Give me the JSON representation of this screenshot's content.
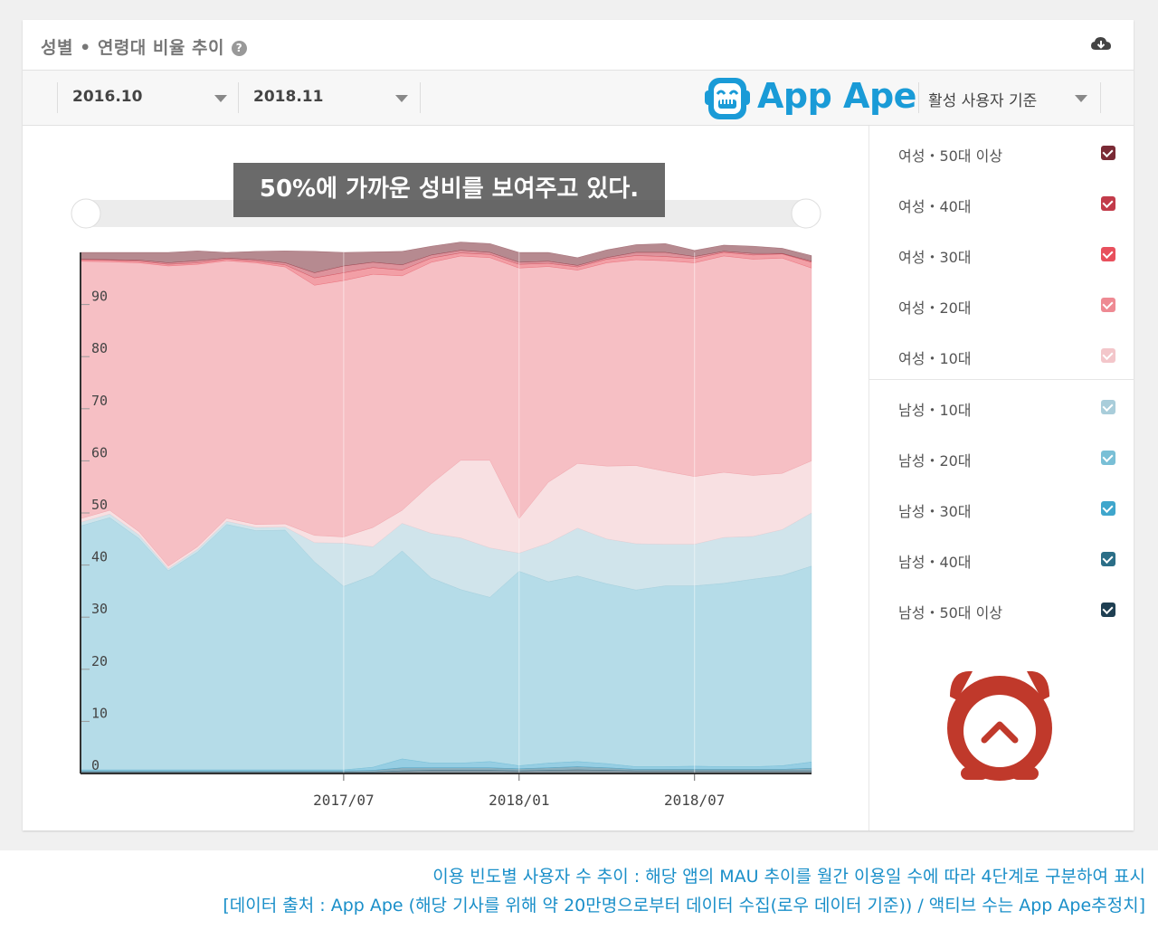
{
  "card": {
    "title": "성별 • 연령대 비율 추이",
    "help_icon": "question-circle-icon",
    "download_icon": "cloud-download-icon"
  },
  "toolbar": {
    "start_period": "2016.10",
    "end_period": "2018.11",
    "basis_select": "활성 사용자 기준",
    "logo_text": "App Ape"
  },
  "overlay": {
    "caption": "50%에 가까운 성비를 보여주고 있다."
  },
  "legend": {
    "items": [
      {
        "label": "여성・50대 이상",
        "color": "#7a2a35"
      },
      {
        "label": "여성・40대",
        "color": "#c23b4a"
      },
      {
        "label": "여성・30대",
        "color": "#e8505d"
      },
      {
        "label": "여성・20대",
        "color": "#ee8a93"
      },
      {
        "label": "여성・10대",
        "color": "#f3c6ca"
      },
      {
        "label": "남성・10대",
        "color": "#a9cdda"
      },
      {
        "label": "남성・20대",
        "color": "#79bfd6"
      },
      {
        "label": "남성・30대",
        "color": "#3fa6cc"
      },
      {
        "label": "남성・40대",
        "color": "#2b6e87"
      },
      {
        "label": "남성・50대 이상",
        "color": "#1f3f52"
      }
    ]
  },
  "footer": {
    "line1": "이용 빈도별 사용자 수 추이 : 해당 앱의 MAU 추이를 월간 이용일 수에 따라 4단계로 구분하여 표시",
    "line2": "[데이터 출처 : App Ape (해당 기사를 위해 약 20만명으로부터 데이터 수집(로우 데이터 기준)) / 액티브 수는 App Ape추정치]"
  },
  "chart_data": {
    "type": "area",
    "stacked": true,
    "x": [
      "2016.10",
      "2016.11",
      "2016.12",
      "2017.01",
      "2017.02",
      "2017.03",
      "2017.04",
      "2017.05",
      "2017.06",
      "2017.07",
      "2017.08",
      "2017.09",
      "2017.10",
      "2017.11",
      "2017.12",
      "2018.01",
      "2018.02",
      "2018.03",
      "2018.04",
      "2018.05",
      "2018.06",
      "2018.07",
      "2018.08",
      "2018.09",
      "2018.10",
      "2018.11"
    ],
    "x_tick_labels": [
      "2017/07",
      "2018/01",
      "2018/07"
    ],
    "x_tick_positions": [
      "2017.07",
      "2018.01",
      "2018.07"
    ],
    "ylim": [
      0,
      100
    ],
    "y_ticks": [
      0,
      10,
      20,
      30,
      40,
      50,
      60,
      70,
      80,
      90
    ],
    "grid": true,
    "series": [
      {
        "name": "남성・50대 이상",
        "color": "#1f3f52",
        "values": [
          0.3,
          0.3,
          0.3,
          0.3,
          0.3,
          0.3,
          0.3,
          0.3,
          0.3,
          0.3,
          0.3,
          0.5,
          0.6,
          0.6,
          0.6,
          0.5,
          0.6,
          0.7,
          0.6,
          0.5,
          0.5,
          0.5,
          0.5,
          0.5,
          0.5,
          0.5
        ]
      },
      {
        "name": "남성・40대",
        "color": "#2b6e87",
        "values": [
          0.2,
          0.2,
          0.2,
          0.2,
          0.2,
          0.2,
          0.2,
          0.2,
          0.2,
          0.2,
          0.3,
          0.6,
          0.5,
          0.5,
          0.5,
          0.4,
          0.5,
          0.6,
          0.5,
          0.3,
          0.3,
          0.3,
          0.3,
          0.3,
          0.3,
          0.5
        ]
      },
      {
        "name": "남성・30대",
        "color": "#3fa6cc",
        "values": [
          0.2,
          0.2,
          0.2,
          0.2,
          0.2,
          0.2,
          0.2,
          0.2,
          0.2,
          0.2,
          0.6,
          1.7,
          0.9,
          0.9,
          1.2,
          0.6,
          0.9,
          1.0,
          0.8,
          0.5,
          0.5,
          0.6,
          0.5,
          0.5,
          0.7,
          1.2
        ]
      },
      {
        "name": "남성・20대",
        "color": "#79bfd6",
        "values": [
          46.8,
          48.4,
          44.4,
          38.2,
          41.8,
          47.1,
          45.9,
          46.0,
          39.9,
          35.2,
          36.8,
          39.9,
          35.5,
          33.3,
          31.5,
          37.3,
          34.8,
          35.6,
          34.5,
          33.9,
          34.7,
          34.6,
          35.2,
          36.0,
          36.5,
          37.6
        ]
      },
      {
        "name": "남성・10대",
        "color": "#a9cdda",
        "values": [
          0.7,
          0.7,
          0.7,
          0.4,
          0.5,
          0.6,
          0.6,
          0.6,
          3.7,
          8.3,
          5.5,
          5.3,
          8.6,
          9.9,
          9.5,
          3.5,
          7.4,
          9.2,
          8.6,
          8.9,
          8.0,
          8.0,
          8.8,
          8.2,
          8.8,
          10.2
        ]
      },
      {
        "name": "여성・10대",
        "color": "#f3c6ca",
        "values": [
          0.7,
          0.7,
          0.6,
          0.5,
          0.5,
          0.6,
          0.6,
          0.6,
          1.4,
          1.2,
          3.7,
          2.5,
          9.5,
          14.9,
          16.8,
          6.6,
          11.7,
          12.4,
          14.0,
          15.0,
          14.0,
          13.0,
          12.5,
          11.7,
          10.8,
          10.0
        ]
      },
      {
        "name": "여성・20대",
        "color": "#ee8a93",
        "values": [
          49.4,
          47.7,
          51.6,
          57.6,
          54.2,
          49.4,
          50.2,
          49.3,
          48.0,
          49.2,
          48.6,
          45.0,
          42.5,
          39.2,
          38.9,
          48.1,
          41.4,
          37.1,
          39.0,
          39.5,
          40.4,
          41.0,
          41.5,
          41.5,
          41.3,
          37.0
        ]
      },
      {
        "name": "여성・30대",
        "color": "#e8505d",
        "values": [
          0.3,
          0.3,
          0.3,
          0.3,
          0.3,
          0.3,
          0.3,
          0.4,
          1.4,
          1.5,
          1.3,
          1.1,
          0.8,
          0.6,
          0.6,
          0.7,
          0.6,
          0.6,
          0.7,
          0.8,
          0.8,
          0.8,
          0.7,
          0.8,
          0.8,
          1.1
        ]
      },
      {
        "name": "여성・40대",
        "color": "#c23b4a",
        "values": [
          0.1,
          0.1,
          0.2,
          0.3,
          0.4,
          0.2,
          0.3,
          0.4,
          1.0,
          1.3,
          1.0,
          1.0,
          0.6,
          0.5,
          0.4,
          0.4,
          0.4,
          0.3,
          0.3,
          0.6,
          0.8,
          0.4,
          0.2,
          0.3,
          0.1,
          0.2
        ]
      },
      {
        "name": "여성・50대 이상",
        "color": "#7a2a35",
        "values": [
          1.3,
          1.4,
          1.5,
          2.0,
          1.9,
          1.1,
          1.6,
          2.3,
          4.1,
          2.6,
          2.0,
          2.6,
          1.7,
          1.6,
          1.7,
          1.9,
          1.7,
          1.5,
          1.5,
          1.5,
          1.7,
          1.2,
          1.2,
          1.4,
          1.0,
          1.1
        ]
      }
    ]
  }
}
